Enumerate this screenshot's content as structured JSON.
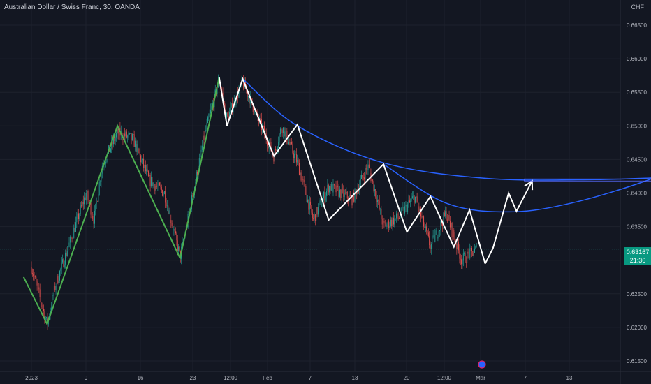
{
  "header": {
    "symbol_line": "Australian Dollar / Swiss Franc, 30, OANDA",
    "currency": "CHF"
  },
  "price_tag": {
    "price": "0.63167",
    "countdown": "21:36",
    "color": "#089981"
  },
  "colors": {
    "background": "#131722",
    "up": "#26a69a",
    "down": "#ef5350",
    "zigzag_green": "#4caf50",
    "zigzag_white": "#ffffff",
    "curve_blue": "#2962ff"
  },
  "chart_data": {
    "type": "candlestick",
    "title": "Australian Dollar / Swiss Franc, 30, OANDA",
    "ylim": [
      0.6125,
      0.6685
    ],
    "y_ticks": [
      "0.66500",
      "0.66000",
      "0.65500",
      "0.65000",
      "0.64500",
      "0.64000",
      "0.63500",
      "0.63000",
      "0.62500",
      "0.62000",
      "0.61500"
    ],
    "x_ticks": [
      "2023",
      "9",
      "16",
      "23",
      "12:00",
      "Feb",
      "7",
      "13",
      "20",
      "12:00",
      "Mar",
      "7",
      "13"
    ],
    "last_price": 0.63167,
    "price_path": [
      {
        "d": "2023-01-02",
        "v": 0.629
      },
      {
        "d": "2023-01-04",
        "v": 0.6205
      },
      {
        "d": "2023-01-05",
        "v": 0.626
      },
      {
        "d": "2023-01-07",
        "v": 0.633
      },
      {
        "d": "2023-01-09",
        "v": 0.64
      },
      {
        "d": "2023-01-10",
        "v": 0.636
      },
      {
        "d": "2023-01-11",
        "v": 0.644
      },
      {
        "d": "2023-01-13",
        "v": 0.649
      },
      {
        "d": "2023-01-15",
        "v": 0.648
      },
      {
        "d": "2023-01-17",
        "v": 0.642
      },
      {
        "d": "2023-01-19",
        "v": 0.64
      },
      {
        "d": "2023-01-21",
        "v": 0.6305
      },
      {
        "d": "2023-01-22",
        "v": 0.636
      },
      {
        "d": "2023-01-24",
        "v": 0.648
      },
      {
        "d": "2023-01-26",
        "v": 0.657
      },
      {
        "d": "2023-01-27",
        "v": 0.651
      },
      {
        "d": "2023-01-29",
        "v": 0.6565
      },
      {
        "d": "2023-01-31",
        "v": 0.651
      },
      {
        "d": "2023-02-02",
        "v": 0.6455
      },
      {
        "d": "2023-02-03",
        "v": 0.65
      },
      {
        "d": "2023-02-05",
        "v": 0.6445
      },
      {
        "d": "2023-02-07",
        "v": 0.636
      },
      {
        "d": "2023-02-09",
        "v": 0.641
      },
      {
        "d": "2023-02-12",
        "v": 0.639
      },
      {
        "d": "2023-02-14",
        "v": 0.644
      },
      {
        "d": "2023-02-15",
        "v": 0.64
      },
      {
        "d": "2023-02-16",
        "v": 0.635
      },
      {
        "d": "2023-02-18",
        "v": 0.6365
      },
      {
        "d": "2023-02-20",
        "v": 0.6395
      },
      {
        "d": "2023-02-22",
        "v": 0.632
      },
      {
        "d": "2023-02-24",
        "v": 0.637
      },
      {
        "d": "2023-02-26",
        "v": 0.63
      },
      {
        "d": "2023-02-28",
        "v": 0.6317
      }
    ],
    "zigzag_green": [
      {
        "d": "2023-01-01",
        "v": 0.6275
      },
      {
        "d": "2023-01-04",
        "v": 0.6205
      },
      {
        "d": "2023-01-13",
        "v": 0.65
      },
      {
        "d": "2023-01-21",
        "v": 0.6303
      },
      {
        "d": "2023-01-26",
        "v": 0.6572
      }
    ],
    "zigzag_white": [
      {
        "d": "2023-01-26",
        "v": 0.6572
      },
      {
        "d": "2023-01-27",
        "v": 0.65
      },
      {
        "d": "2023-01-29",
        "v": 0.657
      },
      {
        "d": "2023-02-02",
        "v": 0.6455
      },
      {
        "d": "2023-02-05",
        "v": 0.6502
      },
      {
        "d": "2023-02-09",
        "v": 0.636
      },
      {
        "d": "2023-02-16",
        "v": 0.6443
      },
      {
        "d": "2023-02-19",
        "v": 0.6342
      },
      {
        "d": "2023-02-22",
        "v": 0.6395
      },
      {
        "d": "2023-02-25",
        "v": 0.632
      },
      {
        "d": "2023-02-27",
        "v": 0.6375
      },
      {
        "d": "2023-03-01",
        "v": 0.6295
      }
    ],
    "projection_white": [
      {
        "d": "2023-03-01",
        "v": 0.6295
      },
      {
        "d": "2023-03-02",
        "v": 0.6318
      },
      {
        "d": "2023-03-04",
        "v": 0.64
      },
      {
        "d": "2023-03-05",
        "v": 0.6373
      },
      {
        "d": "2023-03-07",
        "v": 0.6418
      }
    ],
    "blue_curve_1": [
      {
        "d": "2023-01-29",
        "v": 0.657
      },
      {
        "d": "2023-02-05",
        "v": 0.65
      },
      {
        "d": "2023-02-16",
        "v": 0.6445
      },
      {
        "d": "2023-03-01",
        "v": 0.6422
      },
      {
        "d": "2023-03-15",
        "v": 0.642
      },
      {
        "d": "2023-03-28",
        "v": 0.6425
      }
    ],
    "blue_curve_2": [
      {
        "d": "2023-02-16",
        "v": 0.6443
      },
      {
        "d": "2023-02-24",
        "v": 0.6385
      },
      {
        "d": "2023-03-04",
        "v": 0.6372
      },
      {
        "d": "2023-03-12",
        "v": 0.6385
      },
      {
        "d": "2023-03-22",
        "v": 0.642
      },
      {
        "d": "2023-03-28",
        "v": 0.6453
      }
    ],
    "target_line": {
      "from": "2023-03-06",
      "to": "2023-03-26",
      "v": 0.64195
    }
  }
}
